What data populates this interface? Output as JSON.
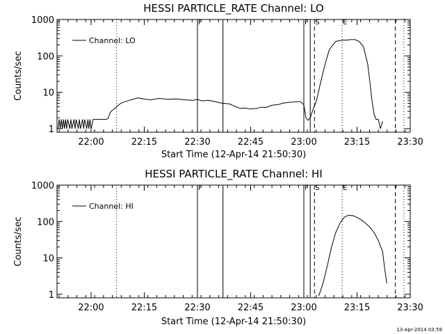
{
  "footer": {
    "timestamp": "13-Apr-2014 03:59"
  },
  "chart_data": [
    {
      "type": "line",
      "title": "HESSI PARTICLE_RATE Channel: LO",
      "xlabel": "Start Time (12-Apr-14 21:50:30)",
      "ylabel": "Counts/sec",
      "yscale": "log",
      "xlim": [
        21.84,
        23.5
      ],
      "ylim": [
        0.8,
        1000
      ],
      "xticks": [
        {
          "value": 22.0,
          "label": "22:00"
        },
        {
          "value": 22.25,
          "label": "22:15"
        },
        {
          "value": 22.5,
          "label": "22:30"
        },
        {
          "value": 22.75,
          "label": "22:45"
        },
        {
          "value": 23.0,
          "label": "23:00"
        },
        {
          "value": 23.25,
          "label": "23:15"
        },
        {
          "value": 23.5,
          "label": "23:30"
        }
      ],
      "yticks": [
        {
          "value": 1,
          "label": "1"
        },
        {
          "value": 10,
          "label": "10"
        },
        {
          "value": 100,
          "label": "100"
        },
        {
          "value": 1000,
          "label": "1000"
        }
      ],
      "legend": "top-left",
      "series": [
        {
          "name": "Channel: LO",
          "x": [
            21.845,
            21.85,
            21.855,
            21.86,
            21.865,
            21.87,
            21.875,
            21.88,
            21.885,
            21.89,
            21.9,
            21.905,
            21.91,
            21.92,
            21.925,
            21.93,
            21.94,
            21.945,
            21.95,
            21.96,
            21.965,
            21.97,
            21.98,
            21.985,
            21.99,
            21.995,
            22.0,
            22.01,
            22.02,
            22.03,
            22.04,
            22.05,
            22.06,
            22.07,
            22.08,
            22.09,
            22.1,
            22.11,
            22.12,
            22.13,
            22.14,
            22.16,
            22.18,
            22.2,
            22.22,
            22.25,
            22.28,
            22.32,
            22.36,
            22.4,
            22.44,
            22.48,
            22.5,
            22.52,
            22.55,
            22.58,
            22.6,
            22.62,
            22.65,
            22.68,
            22.7,
            22.72,
            22.75,
            22.78,
            22.8,
            22.82,
            22.85,
            22.88,
            22.9,
            22.92,
            22.95,
            22.98,
            22.99,
            23.0,
            23.005,
            23.01,
            23.02,
            23.03,
            23.04,
            23.06,
            23.08,
            23.1,
            23.12,
            23.15,
            23.18,
            23.2,
            23.22,
            23.24,
            23.26,
            23.28,
            23.3,
            23.31,
            23.32,
            23.33,
            23.34,
            23.35,
            23.36,
            23.37
          ],
          "y": [
            1,
            1.8,
            1,
            1.8,
            1,
            1.8,
            1,
            1.8,
            1,
            1.8,
            1,
            1.8,
            1,
            1.8,
            1,
            1.8,
            1,
            1.8,
            1,
            1.8,
            1,
            1.8,
            1,
            1.8,
            1,
            1.8,
            1,
            1.8,
            1.8,
            1.8,
            1.8,
            1.8,
            1.8,
            1.8,
            1.9,
            2.8,
            3.2,
            3.5,
            4.0,
            4.5,
            5.0,
            5.5,
            6.0,
            6.5,
            7.0,
            6.5,
            6.2,
            6.8,
            6.4,
            6.6,
            6.2,
            6.0,
            6.4,
            5.8,
            6.0,
            5.6,
            5.2,
            5.0,
            4.8,
            4.0,
            3.6,
            3.7,
            3.5,
            3.6,
            3.9,
            3.8,
            4.4,
            4.6,
            5.0,
            5.2,
            5.4,
            5.6,
            5.2,
            4.5,
            3.0,
            2.0,
            1.7,
            2.0,
            3.0,
            6.0,
            20,
            60,
            150,
            250,
            270,
            270,
            280,
            280,
            250,
            180,
            60,
            20,
            6,
            2.5,
            1.8,
            1.8,
            1,
            1.6
          ]
        }
      ],
      "markers": [
        {
          "x": 22.12,
          "style": "dotted",
          "label": ""
        },
        {
          "x": 22.5,
          "style": "solid",
          "label": "F"
        },
        {
          "x": 22.62,
          "style": "solid",
          "label": ""
        },
        {
          "x": 23.0,
          "style": "solid",
          "label": "F"
        },
        {
          "x": 23.03,
          "style": "solid",
          "label": ""
        },
        {
          "x": 23.05,
          "style": "dashed",
          "label": "S"
        },
        {
          "x": 23.18,
          "style": "dotted",
          "label": "E"
        },
        {
          "x": 23.43,
          "style": "dashed",
          "label": ""
        },
        {
          "x": 23.47,
          "style": "dotted",
          "label": ""
        }
      ]
    },
    {
      "type": "line",
      "title": "HESSI PARTICLE_RATE Channel: HI",
      "xlabel": "Start Time (12-Apr-14 21:50:30)",
      "ylabel": "Counts/sec",
      "yscale": "log",
      "xlim": [
        21.84,
        23.5
      ],
      "ylim": [
        0.8,
        1000
      ],
      "xticks": [
        {
          "value": 22.0,
          "label": "22:00"
        },
        {
          "value": 22.25,
          "label": "22:15"
        },
        {
          "value": 22.5,
          "label": "22:30"
        },
        {
          "value": 22.75,
          "label": "22:45"
        },
        {
          "value": 23.0,
          "label": "23:00"
        },
        {
          "value": 23.25,
          "label": "23:15"
        },
        {
          "value": 23.5,
          "label": "23:30"
        }
      ],
      "yticks": [
        {
          "value": 1,
          "label": "1"
        },
        {
          "value": 10,
          "label": "10"
        },
        {
          "value": 100,
          "label": "100"
        },
        {
          "value": 1000,
          "label": "1000"
        }
      ],
      "legend": "top-left",
      "series": [
        {
          "name": "Channel: HI",
          "x": [
            23.07,
            23.09,
            23.11,
            23.13,
            23.15,
            23.17,
            23.19,
            23.21,
            23.23,
            23.25,
            23.27,
            23.29,
            23.31,
            23.33,
            23.35,
            23.37,
            23.38,
            23.39
          ],
          "y": [
            0.9,
            2,
            6,
            20,
            50,
            90,
            130,
            150,
            145,
            130,
            110,
            90,
            70,
            50,
            30,
            15,
            5,
            2
          ]
        }
      ],
      "markers": [
        {
          "x": 22.12,
          "style": "dotted",
          "label": ""
        },
        {
          "x": 22.5,
          "style": "solid",
          "label": "F"
        },
        {
          "x": 22.62,
          "style": "solid",
          "label": ""
        },
        {
          "x": 23.0,
          "style": "solid",
          "label": "F"
        },
        {
          "x": 23.03,
          "style": "solid",
          "label": ""
        },
        {
          "x": 23.05,
          "style": "dashed",
          "label": "S"
        },
        {
          "x": 23.18,
          "style": "dotted",
          "label": "E"
        },
        {
          "x": 23.43,
          "style": "dashed",
          "label": ""
        },
        {
          "x": 23.47,
          "style": "dotted",
          "label": ""
        }
      ]
    }
  ]
}
